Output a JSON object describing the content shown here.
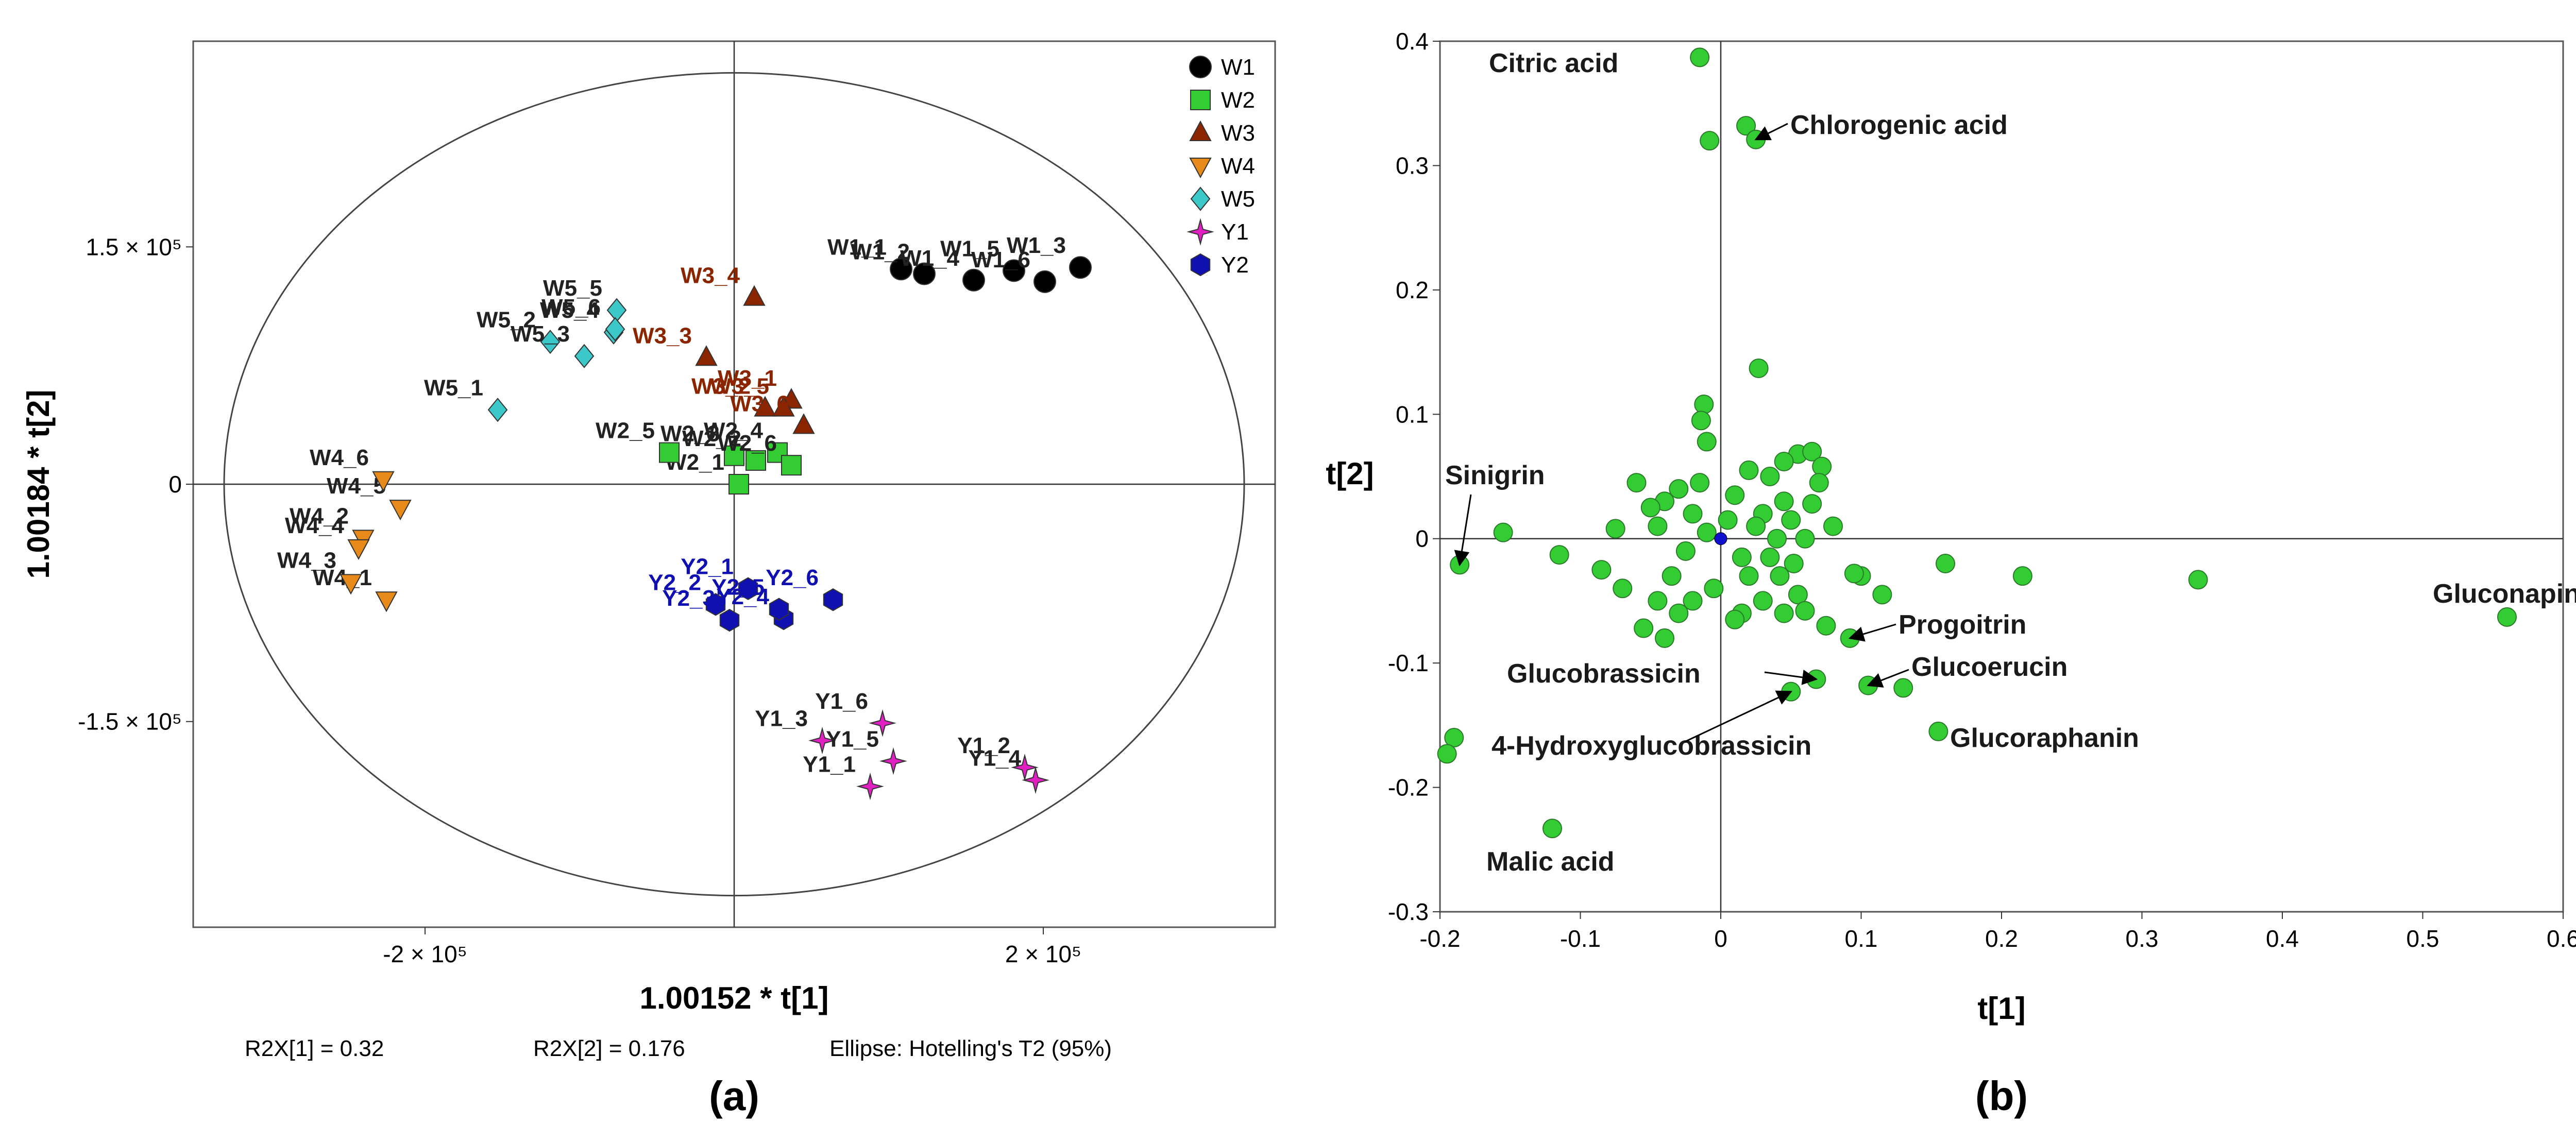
{
  "chart_data": [
    {
      "type": "scatter",
      "panel_label": "(a)",
      "xlabel": "1.00152 * t[1]",
      "ylabel": "1.00184 * t[2]",
      "xlim": [
        -350000,
        350000
      ],
      "ylim": [
        -280000,
        280000
      ],
      "x_ticks": [
        {
          "value": -200000,
          "label": "-2 × 10⁵"
        },
        {
          "value": 200000,
          "label": "2 × 10⁵"
        }
      ],
      "y_ticks": [
        {
          "value": 150000,
          "label": "1.5 × 10⁵"
        },
        {
          "value": 0,
          "label": "0"
        },
        {
          "value": -150000,
          "label": "-1.5 × 10⁵"
        }
      ],
      "footer": {
        "r2x1": "R2X[1] = 0.32",
        "r2x2": "R2X[2] = 0.176",
        "ellipse": "Ellipse: Hotelling's T2 (95%)"
      },
      "ellipse": {
        "rx": 330000,
        "ry": 260000
      },
      "legend_position": "top-right",
      "series": [
        {
          "name": "W1",
          "marker": "circle",
          "color": "#000000",
          "points": [
            {
              "label": "W1_1",
              "x": 108000,
              "y": 136000
            },
            {
              "label": "W1_2",
              "x": 123000,
              "y": 133000
            },
            {
              "label": "W1_3",
              "x": 224000,
              "y": 137000
            },
            {
              "label": "W1_4",
              "x": 155000,
              "y": 129000
            },
            {
              "label": "W1_5",
              "x": 181000,
              "y": 135000
            },
            {
              "label": "W1_6",
              "x": 201000,
              "y": 128000
            }
          ]
        },
        {
          "name": "W2",
          "marker": "square",
          "color": "#33cc33",
          "points": [
            {
              "label": "W2_1",
              "x": 3000,
              "y": 0
            },
            {
              "label": "W2_2",
              "x": 14000,
              "y": 15000
            },
            {
              "label": "W2_3",
              "x": 0,
              "y": 18000
            },
            {
              "label": "W2_4",
              "x": 28000,
              "y": 20000
            },
            {
              "label": "W2_5",
              "x": -42000,
              "y": 20000
            },
            {
              "label": "W2_6",
              "x": 37000,
              "y": 12000
            }
          ]
        },
        {
          "name": "W3",
          "marker": "triangle-up",
          "color": "#8b2500",
          "points": [
            {
              "label": "W3_1",
              "x": 37000,
              "y": 53000
            },
            {
              "label": "W3_2",
              "x": 20000,
              "y": 48000
            },
            {
              "label": "W3_3",
              "x": -18000,
              "y": 80000
            },
            {
              "label": "W3_4",
              "x": 13000,
              "y": 118000
            },
            {
              "label": "W3_5",
              "x": 32000,
              "y": 48000
            },
            {
              "label": "W3_6",
              "x": 45000,
              "y": 37000
            }
          ]
        },
        {
          "name": "W4",
          "marker": "triangle-down",
          "color": "#e88a1a",
          "points": [
            {
              "label": "W4_1",
              "x": -225000,
              "y": -73000
            },
            {
              "label": "W4_2",
              "x": -240000,
              "y": -34000
            },
            {
              "label": "W4_3",
              "x": -248000,
              "y": -62000
            },
            {
              "label": "W4_4",
              "x": -243000,
              "y": -40000
            },
            {
              "label": "W4_5",
              "x": -216000,
              "y": -15000
            },
            {
              "label": "W4_6",
              "x": -227000,
              "y": 3000
            }
          ]
        },
        {
          "name": "W5",
          "marker": "diamond",
          "color": "#3cc8c8",
          "points": [
            {
              "label": "W5_1",
              "x": -153000,
              "y": 47000
            },
            {
              "label": "W5_2",
              "x": -119000,
              "y": 90000
            },
            {
              "label": "W5_3",
              "x": -97000,
              "y": 81000
            },
            {
              "label": "W5_4",
              "x": -78000,
              "y": 96000
            },
            {
              "label": "W5_5",
              "x": -76000,
              "y": 110000
            },
            {
              "label": "W5_6",
              "x": -77000,
              "y": 98000
            }
          ]
        },
        {
          "name": "Y1",
          "marker": "star4",
          "color": "#e020c0",
          "points": [
            {
              "label": "Y1_1",
              "x": 88000,
              "y": -191000
            },
            {
              "label": "Y1_2",
              "x": 188000,
              "y": -179000
            },
            {
              "label": "Y1_3",
              "x": 57000,
              "y": -162000
            },
            {
              "label": "Y1_4",
              "x": 195000,
              "y": -187000
            },
            {
              "label": "Y1_5",
              "x": 103000,
              "y": -175000
            },
            {
              "label": "Y1_6",
              "x": 96000,
              "y": -151000
            }
          ]
        },
        {
          "name": "Y2",
          "marker": "hexagon",
          "color": "#1010b0",
          "points": [
            {
              "label": "Y2_1",
              "x": 9000,
              "y": -66000
            },
            {
              "label": "Y2_2",
              "x": -12000,
              "y": -76000
            },
            {
              "label": "Y2_3",
              "x": -3000,
              "y": -86000
            },
            {
              "label": "Y2_4",
              "x": 32000,
              "y": -85000
            },
            {
              "label": "Y2_5",
              "x": 29000,
              "y": -79000
            },
            {
              "label": "Y2_6",
              "x": 64000,
              "y": -73000
            }
          ]
        }
      ]
    },
    {
      "type": "scatter",
      "panel_label": "(b)",
      "xlabel": "t[1]",
      "ylabel": "t[2]",
      "xlim": [
        -0.2,
        0.6
      ],
      "ylim": [
        -0.3,
        0.4
      ],
      "x_ticks": [
        {
          "value": -0.2,
          "label": "-0.2"
        },
        {
          "value": -0.1,
          "label": "-0.1"
        },
        {
          "value": 0,
          "label": "0"
        },
        {
          "value": 0.1,
          "label": "0.1"
        },
        {
          "value": 0.2,
          "label": "0.2"
        },
        {
          "value": 0.3,
          "label": "0.3"
        },
        {
          "value": 0.4,
          "label": "0.4"
        },
        {
          "value": 0.5,
          "label": "0.5"
        },
        {
          "value": 0.6,
          "label": "0.6"
        }
      ],
      "y_ticks": [
        {
          "value": 0.4,
          "label": "0.4"
        },
        {
          "value": 0.3,
          "label": "0.3"
        },
        {
          "value": 0.2,
          "label": "0.2"
        },
        {
          "value": 0.1,
          "label": "0.1"
        },
        {
          "value": 0,
          "label": "0"
        },
        {
          "value": -0.1,
          "label": "-0.1"
        },
        {
          "value": -0.2,
          "label": "-0.2"
        },
        {
          "value": -0.3,
          "label": "-0.3"
        }
      ],
      "point_color": "#33cc33",
      "center_point": {
        "x": 0,
        "y": 0,
        "color": "#1010cc"
      },
      "points": [
        {
          "x": -0.015,
          "y": 0.387
        },
        {
          "x": -0.008,
          "y": 0.32
        },
        {
          "x": 0.018,
          "y": 0.332
        },
        {
          "x": 0.025,
          "y": 0.321
        },
        {
          "x": 0.027,
          "y": 0.137
        },
        {
          "x": -0.012,
          "y": 0.108
        },
        {
          "x": -0.014,
          "y": 0.095
        },
        {
          "x": -0.01,
          "y": 0.078
        },
        {
          "x": 0.055,
          "y": 0.068
        },
        {
          "x": 0.065,
          "y": 0.07
        },
        {
          "x": 0.072,
          "y": 0.058
        },
        {
          "x": 0.045,
          "y": 0.062
        },
        {
          "x": 0.035,
          "y": 0.05
        },
        {
          "x": -0.06,
          "y": 0.045
        },
        {
          "x": -0.04,
          "y": 0.03
        },
        {
          "x": -0.075,
          "y": 0.008
        },
        {
          "x": -0.05,
          "y": 0.025
        },
        {
          "x": 0.08,
          "y": 0.01
        },
        {
          "x": 0.065,
          "y": 0.028
        },
        {
          "x": 0.07,
          "y": 0.045
        },
        {
          "x": -0.186,
          "y": -0.021
        },
        {
          "x": -0.155,
          "y": 0.005
        },
        {
          "x": -0.115,
          "y": -0.013
        },
        {
          "x": -0.085,
          "y": -0.025
        },
        {
          "x": -0.07,
          "y": -0.04
        },
        {
          "x": -0.055,
          "y": -0.072
        },
        {
          "x": -0.04,
          "y": -0.08
        },
        {
          "x": -0.045,
          "y": -0.05
        },
        {
          "x": 0.1,
          "y": -0.03
        },
        {
          "x": 0.095,
          "y": -0.028
        },
        {
          "x": 0.115,
          "y": -0.045
        },
        {
          "x": 0.16,
          "y": -0.02
        },
        {
          "x": 0.215,
          "y": -0.03
        },
        {
          "x": 0.34,
          "y": -0.033
        },
        {
          "x": 0.56,
          "y": -0.063
        },
        {
          "x": 0.092,
          "y": -0.08
        },
        {
          "x": 0.075,
          "y": -0.07
        },
        {
          "x": 0.105,
          "y": -0.118
        },
        {
          "x": 0.13,
          "y": -0.12
        },
        {
          "x": 0.155,
          "y": -0.155
        },
        {
          "x": 0.068,
          "y": -0.113
        },
        {
          "x": 0.05,
          "y": -0.123
        },
        {
          "x": -0.19,
          "y": -0.16
        },
        {
          "x": -0.195,
          "y": -0.173
        },
        {
          "x": -0.12,
          "y": -0.233
        },
        {
          "x": 0.015,
          "y": -0.06
        },
        {
          "x": 0.03,
          "y": -0.05
        },
        {
          "x": 0.045,
          "y": -0.06
        },
        {
          "x": 0.055,
          "y": -0.045
        },
        {
          "x": 0.06,
          "y": -0.058
        },
        {
          "x": 0.042,
          "y": -0.03
        },
        {
          "x": 0.052,
          "y": -0.02
        },
        {
          "x": -0.02,
          "y": -0.05
        },
        {
          "x": -0.03,
          "y": -0.06
        },
        {
          "x": 0.01,
          "y": -0.065
        },
        {
          "x": -0.005,
          "y": -0.04
        },
        {
          "x": 0.02,
          "y": -0.03
        },
        {
          "x": 0.03,
          "y": 0.02
        },
        {
          "x": -0.02,
          "y": 0.02
        },
        {
          "x": 0.01,
          "y": 0.035
        },
        {
          "x": 0.025,
          "y": 0.01
        },
        {
          "x": -0.025,
          "y": -0.01
        },
        {
          "x": 0.04,
          "y": 0.0
        },
        {
          "x": 0.005,
          "y": 0.015
        },
        {
          "x": -0.01,
          "y": 0.005
        },
        {
          "x": 0.015,
          "y": -0.015
        },
        {
          "x": 0.045,
          "y": 0.03
        },
        {
          "x": -0.035,
          "y": -0.03
        },
        {
          "x": 0.035,
          "y": -0.015
        },
        {
          "x": 0.05,
          "y": 0.015
        },
        {
          "x": -0.015,
          "y": 0.045
        },
        {
          "x": 0.02,
          "y": 0.055
        },
        {
          "x": 0.06,
          "y": 0.0
        },
        {
          "x": -0.045,
          "y": 0.01
        },
        {
          "x": -0.03,
          "y": 0.04
        }
      ],
      "annotations": [
        {
          "text": "Citric acid"
        },
        {
          "text": "Chlorogenic acid"
        },
        {
          "text": "Sinigrin"
        },
        {
          "text": "Gluconapin"
        },
        {
          "text": "Progoitrin"
        },
        {
          "text": "Glucobrassicin"
        },
        {
          "text": "Glucoerucin"
        },
        {
          "text": "4-Hydroxyglucobrassicin"
        },
        {
          "text": "Glucoraphanin"
        },
        {
          "text": "Malic acid"
        }
      ]
    }
  ]
}
